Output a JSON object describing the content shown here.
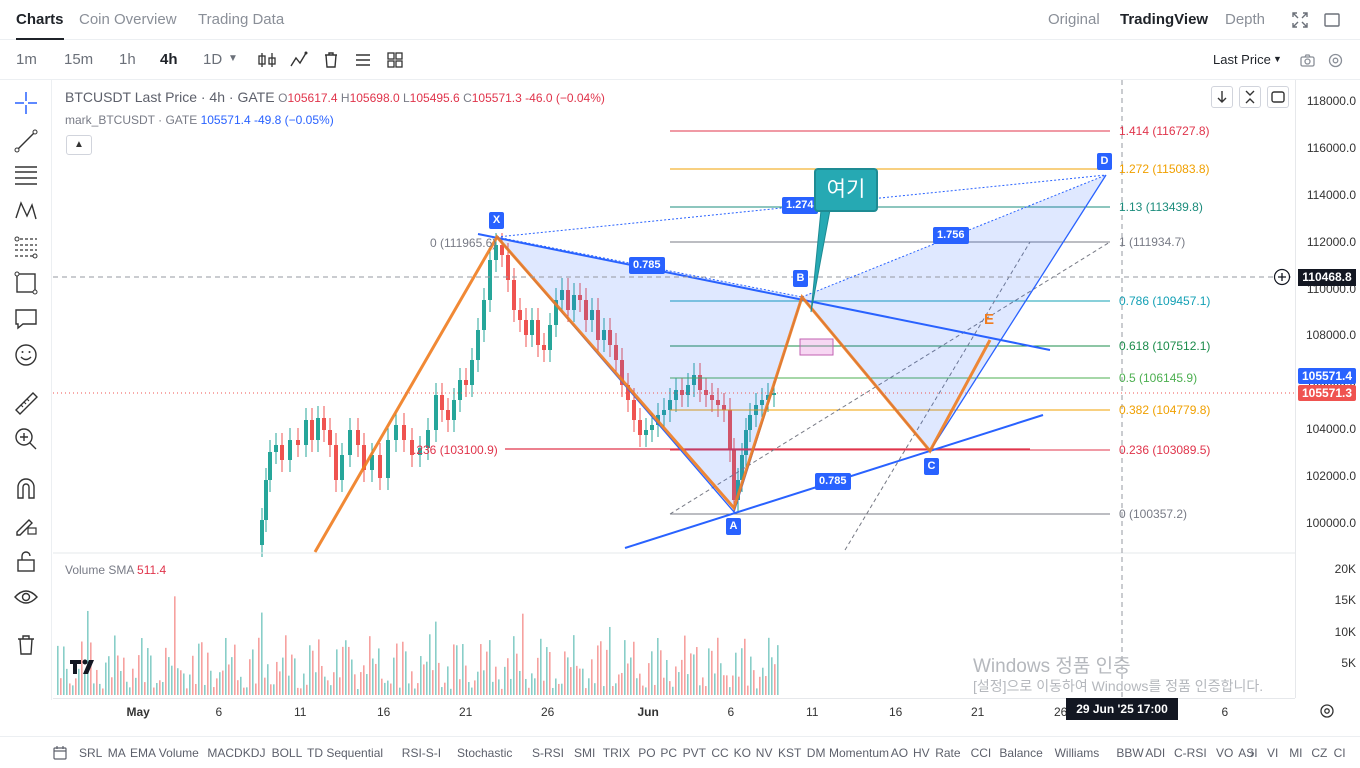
{
  "top_tabs": [
    "Charts",
    "Coin Overview",
    "Trading Data"
  ],
  "right_tabs": [
    "Original",
    "TradingView",
    "Depth"
  ],
  "intervals": [
    "1m",
    "15m",
    "1h",
    "4h",
    "1D"
  ],
  "active_interval": "4h",
  "price_mode": "Last Price",
  "legend": {
    "symbol": "BTCUSDT Last Price · 4h · GATE",
    "o_label": "O",
    "o": "105617.4",
    "h_label": "H",
    "h": "105698.0",
    "l_label": "L",
    "l": "105495.6",
    "c_label": "C",
    "c": "105571.3",
    "change": "-46.0 (−0.04%)",
    "mark_name": "mark_BTCUSDT · GATE",
    "mark_value": "105571.4",
    "mark_change": "-49.8 (−0.05%)"
  },
  "volume_legend": {
    "label": "Volume SMA",
    "value": "511.4"
  },
  "price_axis": [
    "118000.0",
    "116000.0",
    "114000.0",
    "112000.0",
    "110000.0",
    "108000.0",
    "106000.0",
    "104000.0",
    "102000.0",
    "100000.0"
  ],
  "volume_axis": [
    "20K",
    "15K",
    "10K",
    "5K"
  ],
  "time_axis": [
    "May",
    "6",
    "11",
    "16",
    "21",
    "26",
    "Jun",
    "6",
    "11",
    "16",
    "21",
    "26",
    "6"
  ],
  "crosshair_price": "110468.8",
  "crosshair_time": "29 Jun '25   17:00",
  "last_price_badge": "105571.4",
  "last_price_badge2": "105571.3",
  "fib_levels": [
    {
      "label": "1.414 (116727.8)",
      "color": "#e0344b"
    },
    {
      "label": "1.272 (115083.8)",
      "color": "#f0a000"
    },
    {
      "label": "1.13 (113439.8)",
      "color": "#1b8c7c"
    },
    {
      "label": "1 (111934.7)",
      "color": "#787b86"
    },
    {
      "label": "0.786 (109457.1)",
      "color": "#13a0b5"
    },
    {
      "label": "0.618 (107512.1)",
      "color": "#1b8c4b"
    },
    {
      "label": "0.5 (106145.9)",
      "color": "#4caf50"
    },
    {
      "label": "0.382 (104779.8)",
      "color": "#f0a000"
    },
    {
      "label": "0.236 (103089.5)",
      "color": "#e0344b"
    },
    {
      "label": "0 (100357.2)",
      "color": "#787b86"
    }
  ],
  "left_fib": {
    "top": "0 (111965.6)",
    "bottom": ".236 (103100.9)"
  },
  "pattern_points": [
    "X",
    "A",
    "B",
    "C",
    "D"
  ],
  "pattern_ratios": [
    "0.785",
    "1.274",
    "1.756",
    "0.785"
  ],
  "e_label": "E",
  "callout_text": "여기",
  "watermark": {
    "line1": "Windows 정품 인증",
    "line2": "[설정]으로 이동하여 Windows를 정품 인증합니다."
  },
  "indicators": [
    "SRL",
    "MA",
    "EMA",
    "Volume",
    "MACD",
    "KDJ",
    "BOLL",
    "TD Sequential",
    "RSI-S-I",
    "Stochastic",
    "S-RSI",
    "SMI",
    "TRIX",
    "PO",
    "PC",
    "PVT",
    "CC",
    "KO",
    "NV",
    "KST",
    "DM",
    "Momentum",
    "AO",
    "HV",
    "Rate",
    "CCI",
    "Balance",
    "Williams",
    "BBW",
    "ADI",
    "C-RSI",
    "VO",
    "ASI",
    "VI",
    "MI",
    "CZ",
    "CI"
  ],
  "colors": {
    "up": "#26a69a",
    "down": "#ef5350",
    "accent": "#2962ff",
    "pattern_orange": "#f07c1f"
  }
}
